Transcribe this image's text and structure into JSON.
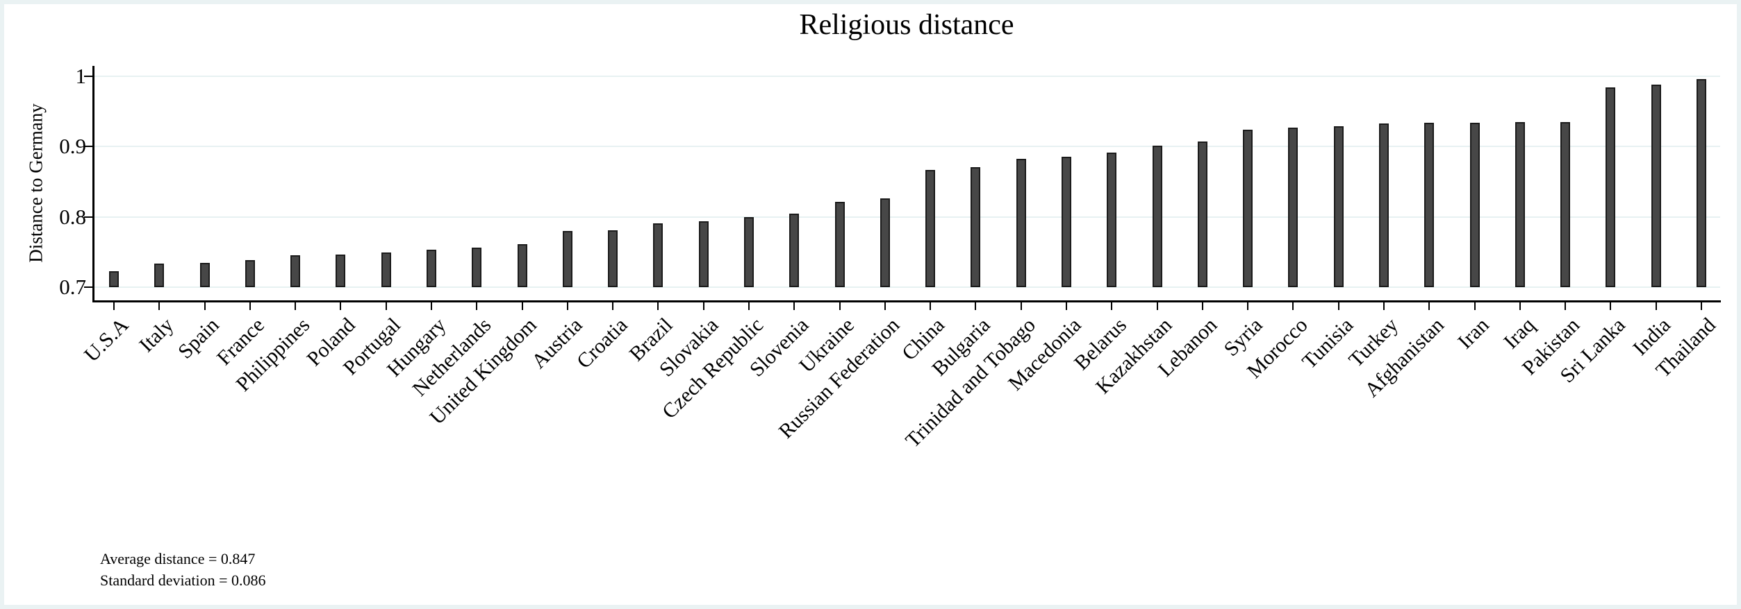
{
  "title": "Religious distance",
  "y_axis": {
    "label": "Distance to Germany",
    "tick_labels": [
      "1",
      "0.9",
      "0.8",
      "0.7"
    ]
  },
  "annotation": {
    "line1": "Average distance = 0.847",
    "line2": "Standard deviation = 0.086"
  },
  "colors": {
    "bar_fill": "#474747",
    "bar_border": "#1b1b1b",
    "gridline": "#e7f1f2",
    "frame": "#eaf2f3",
    "axis": "#000000",
    "background": "#ffffff"
  },
  "chart_data": {
    "type": "bar",
    "title": "Religious distance",
    "xlabel": "",
    "ylabel": "Distance to Germany",
    "ylim": [
      0.7,
      1.0
    ],
    "yticks": [
      1.0,
      0.9,
      0.8,
      0.7
    ],
    "grid": true,
    "legend": "none",
    "bar_baseline": 0.7,
    "categories": [
      "U.S.A",
      "Italy",
      "Spain",
      "France",
      "Philippines",
      "Poland",
      "Portugal",
      "Hungary",
      "Netherlands",
      "United Kingdom",
      "Austria",
      "Croatia",
      "Brazil",
      "Slovakia",
      "Czech Republic",
      "Slovenia",
      "Ukraine",
      "Russian Federation",
      "China",
      "Bulgaria",
      "Trinidad and Tobago",
      "Macedonia",
      "Belarus",
      "Kazakhstan",
      "Lebanon",
      "Syria",
      "Morocco",
      "Tunisia",
      "Turkey",
      "Afghanistan",
      "Iran",
      "Iraq",
      "Pakistan",
      "Sri Lanka",
      "India",
      "Thailand"
    ],
    "values": [
      0.723,
      0.734,
      0.735,
      0.738,
      0.745,
      0.746,
      0.749,
      0.753,
      0.756,
      0.761,
      0.78,
      0.781,
      0.791,
      0.794,
      0.8,
      0.805,
      0.821,
      0.826,
      0.867,
      0.871,
      0.883,
      0.886,
      0.891,
      0.901,
      0.907,
      0.924,
      0.927,
      0.929,
      0.933,
      0.934,
      0.934,
      0.935,
      0.935,
      0.984,
      0.988,
      0.996
    ],
    "annotations": [
      "Average distance = 0.847",
      "Standard deviation = 0.086"
    ]
  }
}
